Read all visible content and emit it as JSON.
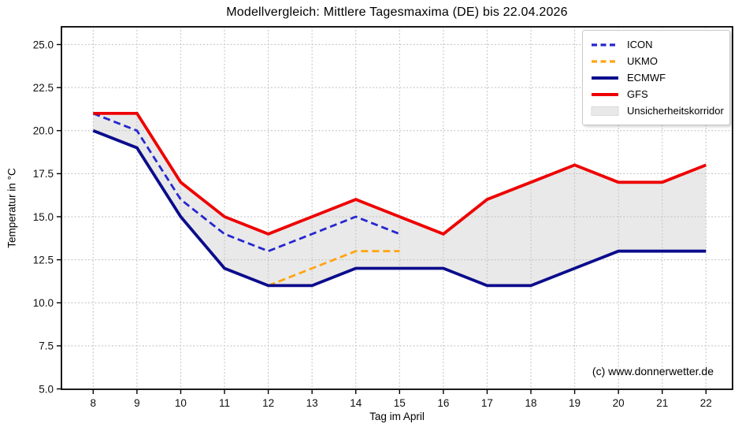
{
  "title": "Modellvergleich: Mittlere Tagesmaxima (DE) bis 22.04.2026",
  "watermark": "(c) www.donnerwetter.de",
  "axes": {
    "x_label": "Tag im April",
    "y_label": "Temperatur in °C",
    "x_ticks": [
      "8",
      "9",
      "10",
      "11",
      "12",
      "13",
      "14",
      "15",
      "16",
      "17",
      "18",
      "19",
      "20",
      "21",
      "22"
    ],
    "y_ticks": [
      "5.0",
      "7.5",
      "10.0",
      "12.5",
      "15.0",
      "17.5",
      "20.0",
      "22.5",
      "25.0"
    ]
  },
  "chart_data": {
    "type": "line",
    "title": "Modellvergleich: Mittlere Tagesmaxima (DE) bis 22.04.2026",
    "xlabel": "Tag im April",
    "ylabel": "Temperatur in °C",
    "x": [
      8,
      9,
      10,
      11,
      12,
      13,
      14,
      15,
      16,
      17,
      18,
      19,
      20,
      21,
      22
    ],
    "ylim": [
      5.0,
      26.0
    ],
    "xlim": [
      7.3,
      22.6
    ],
    "grid": true,
    "legend_position": "top-right",
    "series": [
      {
        "name": "ICON",
        "color": "#2626cf",
        "dash": "9 5",
        "width": 2.8,
        "values": [
          21,
          20,
          16,
          14,
          13,
          14,
          15,
          14,
          null,
          null,
          null,
          null,
          null,
          null,
          null
        ]
      },
      {
        "name": "UKMO",
        "color": "#ffa512",
        "dash": "9 5",
        "width": 2.8,
        "values": [
          null,
          null,
          null,
          null,
          11,
          12,
          13,
          13,
          null,
          null,
          null,
          null,
          null,
          null,
          null
        ]
      },
      {
        "name": "ECMWF",
        "color": "#0c0c8c",
        "dash": null,
        "width": 3.8,
        "values": [
          20,
          19,
          15,
          12,
          11,
          11,
          12,
          12,
          12,
          11,
          11,
          12,
          13,
          13,
          13
        ]
      },
      {
        "name": "GFS",
        "color": "#ee0000",
        "dash": null,
        "width": 3.8,
        "values": [
          21,
          21,
          17,
          15,
          14,
          15,
          16,
          15,
          14,
          16,
          17,
          18,
          17,
          17,
          18
        ]
      }
    ],
    "corridor": {
      "label": "Unsicherheitskorridor",
      "color": "#e9e9e9",
      "edge_color": "#d9d9d9",
      "upper": "GFS",
      "lower": "ECMWF"
    },
    "grid_color": "#c6c6c6",
    "axis_color": "#000000"
  }
}
